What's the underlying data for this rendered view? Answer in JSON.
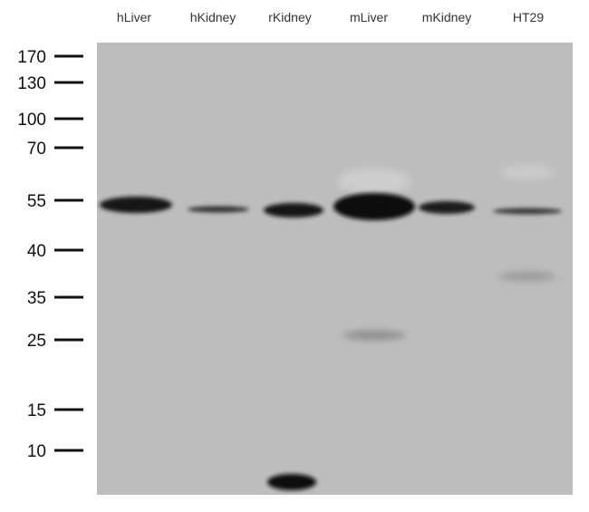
{
  "lanes": [
    "hLiver",
    "hKidney",
    "rKidney",
    "mLiver",
    "mKidney",
    "HT29"
  ],
  "markers": [
    "170",
    "130",
    "100",
    "70",
    "55",
    "40",
    "35",
    "25",
    "15",
    "10"
  ]
}
